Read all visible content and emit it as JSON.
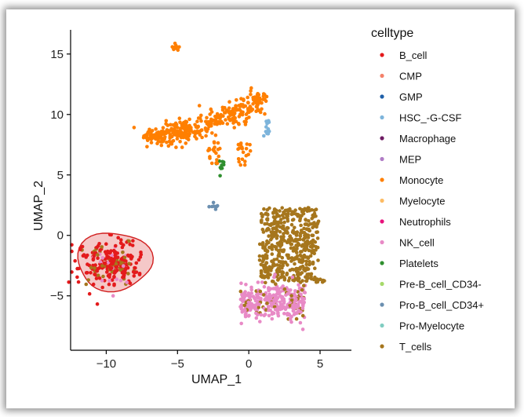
{
  "chart_data": {
    "type": "scatter",
    "title": "",
    "xlabel": "UMAP_1",
    "ylabel": "UMAP_2",
    "xlim": [
      -12.5,
      7.2
    ],
    "ylim": [
      -9.5,
      17.0
    ],
    "x_ticks": [
      -10,
      -5,
      0,
      5
    ],
    "y_ticks": [
      -5,
      0,
      5,
      10,
      15
    ],
    "grid": false,
    "legend_position": "right",
    "legend_title": "celltype",
    "series": [
      {
        "name": "B_cell",
        "color": "#e41a1c"
      },
      {
        "name": "CMP",
        "color": "#f4816a"
      },
      {
        "name": "GMP",
        "color": "#1f5fa8"
      },
      {
        "name": "HSC_-G-CSF",
        "color": "#7db4db"
      },
      {
        "name": "Macrophage",
        "color": "#6e1b63"
      },
      {
        "name": "MEP",
        "color": "#b07cc6"
      },
      {
        "name": "Monocyte",
        "color": "#ff7f00"
      },
      {
        "name": "Myelocyte",
        "color": "#fdbb63"
      },
      {
        "name": "Neutrophils",
        "color": "#e8127c"
      },
      {
        "name": "NK_cell",
        "color": "#e88ac6"
      },
      {
        "name": "Platelets",
        "color": "#2f8f2f"
      },
      {
        "name": "Pre-B_cell_CD34-",
        "color": "#a6d96a"
      },
      {
        "name": "Pro-B_cell_CD34+",
        "color": "#6b8fb0"
      },
      {
        "name": "Pro-Myelocyte",
        "color": "#80cdc1"
      },
      {
        "name": "T_cells",
        "color": "#a6761d"
      }
    ],
    "clusters": [
      {
        "name": "T_cells",
        "center": [
          2.8,
          -0.8
        ],
        "spread": [
          1.9,
          3.1
        ],
        "count": 500,
        "shape": "tcell_block"
      },
      {
        "name": "NK_cell",
        "center": [
          1.7,
          -5.4
        ],
        "spread": [
          2.3,
          1.3
        ],
        "count": 340,
        "shape": "nk_band"
      },
      {
        "name": "B_cell",
        "center": [
          -9.8,
          -2.3
        ],
        "spread": [
          1.0,
          0.9
        ],
        "count": 260,
        "shape": "blob"
      },
      {
        "name": "Monocyte",
        "center": [
          -2.0,
          10.0
        ],
        "spread": [
          2.2,
          1.2
        ],
        "count": 380,
        "shape": "monocyte_arc"
      },
      {
        "name": "Monocyte",
        "center": [
          -5.2,
          15.6
        ],
        "spread": [
          0.15,
          0.2
        ],
        "count": 10,
        "shape": "blob"
      },
      {
        "name": "HSC_-G-CSF",
        "center": [
          1.3,
          8.8
        ],
        "spread": [
          0.15,
          0.4
        ],
        "count": 12,
        "shape": "blob"
      },
      {
        "name": "Platelets",
        "center": [
          -1.9,
          5.8
        ],
        "spread": [
          0.2,
          0.4
        ],
        "count": 10,
        "shape": "blob"
      },
      {
        "name": "Pro-B_cell_CD34+",
        "center": [
          -2.3,
          2.4
        ],
        "spread": [
          0.2,
          0.15
        ],
        "count": 8,
        "shape": "blob"
      }
    ],
    "annotation": {
      "type": "ellipse_hull",
      "group": "B_cell",
      "fill": "#f2b6b6",
      "stroke": "#d11f1f"
    }
  }
}
